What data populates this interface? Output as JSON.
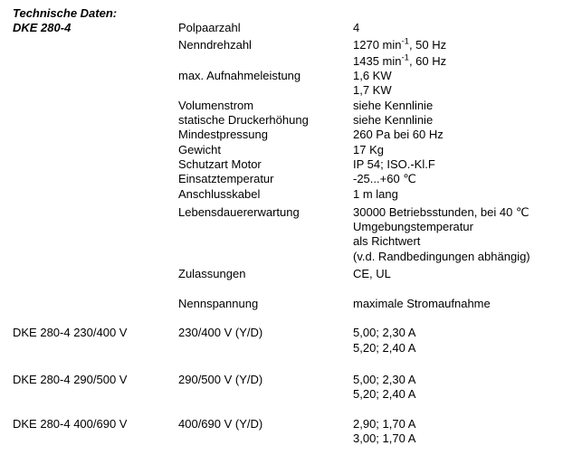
{
  "colors": {
    "text": "#000000",
    "background": "#ffffff"
  },
  "header": {
    "title": "Technische Daten:",
    "model": "DKE 280-4"
  },
  "specs": {
    "polpaarzahl": {
      "label": "Polpaarzahl",
      "value": "4"
    },
    "nenndrehzahl": {
      "label": "Nenndrehzahl",
      "line1": {
        "pre": "1270 min",
        "sup": "-1",
        "post": ", 50 Hz"
      },
      "line2": {
        "pre": "1435 min",
        "sup": "-1",
        "post": ", 60 Hz"
      }
    },
    "aufnahmeleistung": {
      "label": "max. Aufnahmeleistung",
      "value1": "1,6 KW",
      "value2": "1,7 KW"
    },
    "volumenstrom": {
      "label": "Volumenstrom",
      "value": "siehe Kennlinie"
    },
    "druckerhoehung": {
      "label": "statische Druckerhöhung",
      "value": "siehe Kennlinie"
    },
    "mindestpressung": {
      "label": "Mindestpressung",
      "value": "260 Pa bei 60 Hz"
    },
    "gewicht": {
      "label": "Gewicht",
      "value": "17 Kg"
    },
    "schutzart": {
      "label": "Schutzart Motor",
      "value": "IP 54; ISO.-Kl.F"
    },
    "einsatztemperatur": {
      "label": "Einsatztemperatur",
      "value": "-25...+60 ℃"
    },
    "anschlusskabel": {
      "label": "Anschlusskabel",
      "value": "1 m lang"
    },
    "lebensdauer": {
      "label": "Lebensdauererwartung",
      "value1": "30000 Betriebsstunden, bei 40 ℃",
      "value2": "Umgebungstemperatur",
      "value3": "als Richtwert",
      "value4": "(v.d. Randbedingungen abhängig)"
    },
    "zulassungen": {
      "label": "Zulassungen",
      "value": "CE, UL"
    }
  },
  "variant_table": {
    "header": {
      "voltage_col": "Nennspannung",
      "current_col": "maximale Stromaufnahme"
    },
    "variants": [
      {
        "name": "DKE 280-4 230/400 V",
        "voltage": "230/400 V (Y/D)",
        "current_line1": "5,00; 2,30 A",
        "current_line2": "5,20; 2,40 A"
      },
      {
        "name": "DKE 280-4 290/500 V",
        "voltage": "290/500 V (Y/D)",
        "current_line1": "5,00; 2,30 A",
        "current_line2": "5,20; 2,40 A"
      },
      {
        "name": "DKE 280-4 400/690 V",
        "voltage": "400/690 V (Y/D)",
        "current_line1": "2,90; 1,70 A",
        "current_line2": "3,00; 1,70 A"
      }
    ]
  }
}
